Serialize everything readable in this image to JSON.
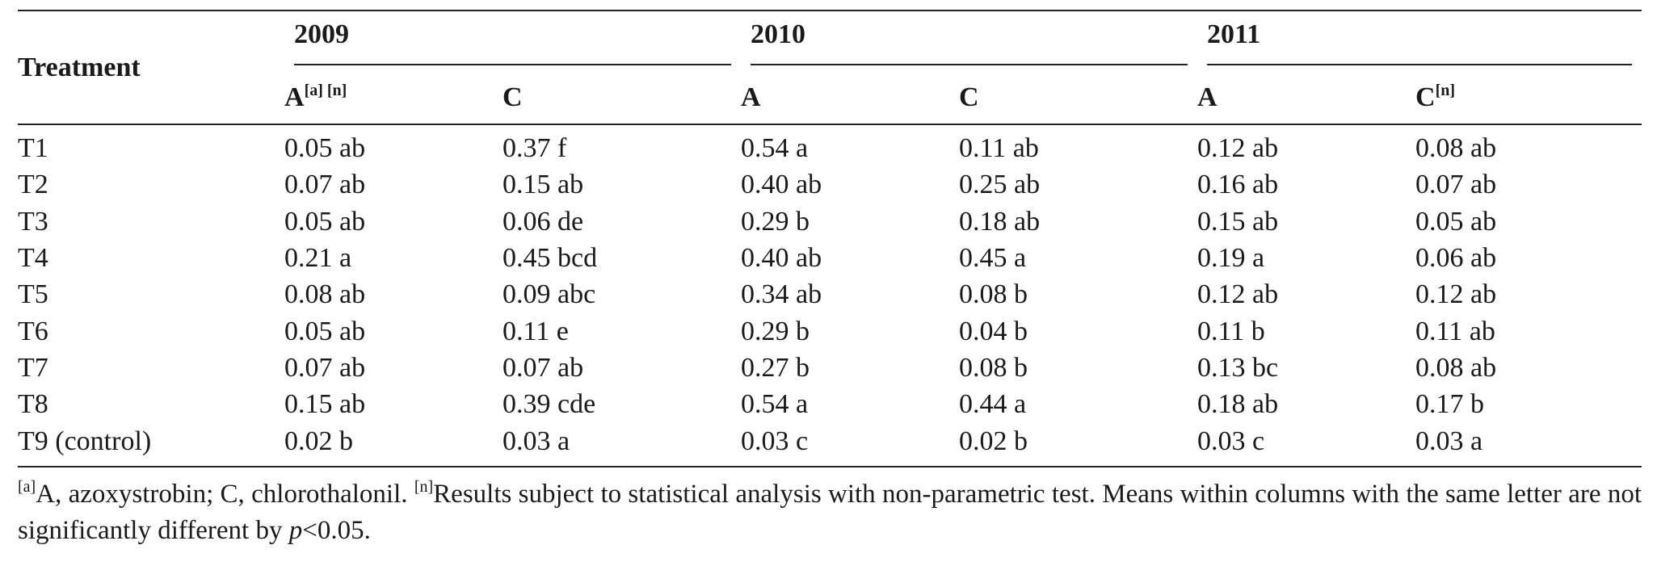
{
  "header": {
    "treatment": "Treatment",
    "years": [
      "2009",
      "2010",
      "2011"
    ],
    "subcols": [
      {
        "label": "A",
        "sup": "[a] [n]"
      },
      {
        "label": "C",
        "sup": ""
      },
      {
        "label": "A",
        "sup": ""
      },
      {
        "label": "C",
        "sup": ""
      },
      {
        "label": "A",
        "sup": ""
      },
      {
        "label": "C",
        "sup": "[n]"
      }
    ]
  },
  "rows": [
    {
      "treatment": "T1",
      "values": [
        "0.05 ab",
        "0.37 f",
        "0.54 a",
        "0.11 ab",
        "0.12 ab",
        "0.08 ab"
      ]
    },
    {
      "treatment": "T2",
      "values": [
        "0.07 ab",
        "0.15 ab",
        "0.40 ab",
        "0.25 ab",
        "0.16 ab",
        "0.07 ab"
      ]
    },
    {
      "treatment": "T3",
      "values": [
        "0.05 ab",
        "0.06 de",
        "0.29 b",
        "0.18 ab",
        "0.15 ab",
        "0.05 ab"
      ]
    },
    {
      "treatment": "T4",
      "values": [
        "0.21 a",
        "0.45 bcd",
        "0.40 ab",
        "0.45 a",
        "0.19 a",
        "0.06 ab"
      ]
    },
    {
      "treatment": "T5",
      "values": [
        "0.08 ab",
        "0.09 abc",
        "0.34 ab",
        "0.08 b",
        "0.12 ab",
        "0.12 ab"
      ]
    },
    {
      "treatment": "T6",
      "values": [
        "0.05 ab",
        "0.11 e",
        "0.29 b",
        "0.04 b",
        "0.11 b",
        "0.11 ab"
      ]
    },
    {
      "treatment": "T7",
      "values": [
        "0.07 ab",
        "0.07 ab",
        "0.27 b",
        "0.08 b",
        "0.13 bc",
        "0.08 ab"
      ]
    },
    {
      "treatment": "T8",
      "values": [
        "0.15 ab",
        "0.39 cde",
        "0.54 a",
        "0.44 a",
        "0.18 ab",
        "0.17 b"
      ]
    },
    {
      "treatment": "T9 (control)",
      "values": [
        "0.02 b",
        "0.03 a",
        "0.03 c",
        "0.02 b",
        "0.03 c",
        "0.03 a"
      ]
    }
  ],
  "footnote": {
    "sup_a": "[a]",
    "text_a": "A, azoxystrobin; C, chlorothalonil. ",
    "sup_n": "[n]",
    "text_n": "Results subject to statistical analysis with non-parametric test. Means within columns with the same letter are not significantly different by ",
    "p_italic": "p",
    "p_rest": "<0.05."
  }
}
